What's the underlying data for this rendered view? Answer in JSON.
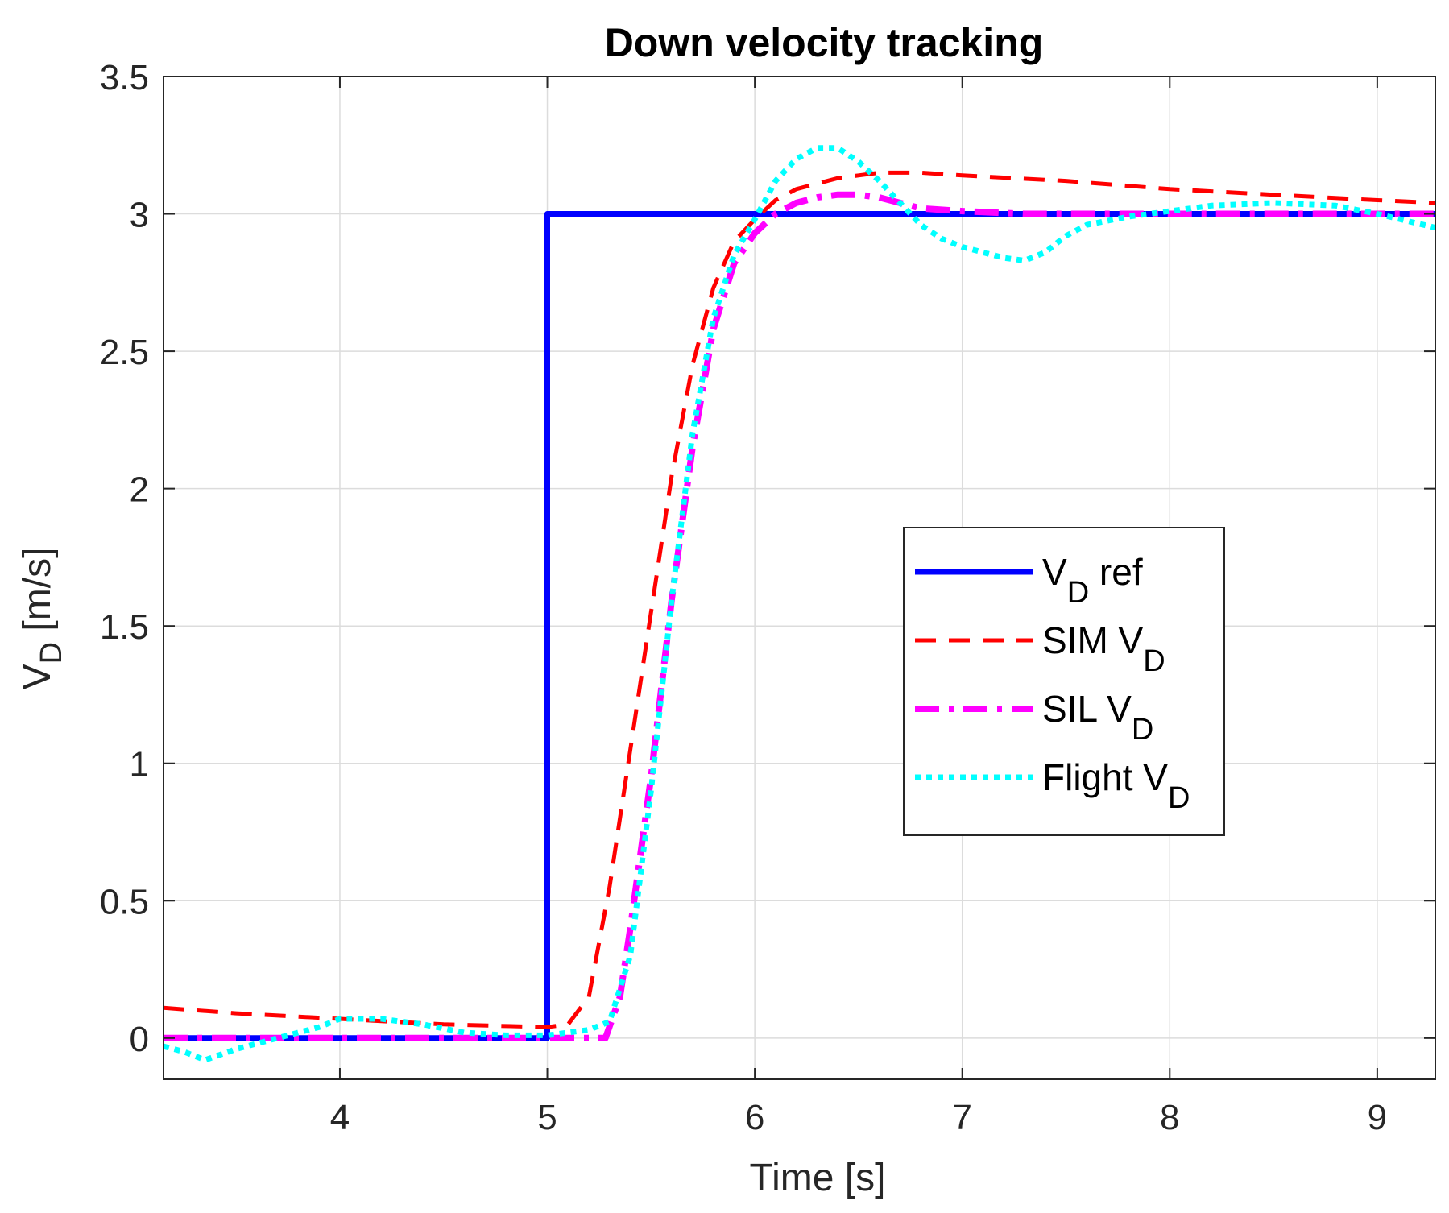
{
  "chart_data": {
    "type": "line",
    "title": "Down velocity tracking",
    "xlabel": "Time [s]",
    "ylabel": {
      "main": "V",
      "sub": "D",
      "rest": " [m/s]"
    },
    "xlim": [
      3.15,
      9.28
    ],
    "ylim": [
      -0.15,
      3.5
    ],
    "xticks": [
      4,
      5,
      6,
      7,
      8,
      9
    ],
    "xtick_labels": [
      "4",
      "5",
      "6",
      "7",
      "8",
      "9"
    ],
    "yticks": [
      0,
      0.5,
      1,
      1.5,
      2,
      2.5,
      3,
      3.5
    ],
    "ytick_labels": [
      "0",
      "0.5",
      "1",
      "1.5",
      "2",
      "2.5",
      "3",
      "3.5"
    ],
    "grid": true,
    "legend_position": "center-right",
    "series": [
      {
        "name": "V_D ref",
        "legend": {
          "pre": "V",
          "sub": "D",
          "post": " ref"
        },
        "color": "#0000ff",
        "style": "solid",
        "x": [
          3.15,
          5.0,
          5.0,
          9.28
        ],
        "y": [
          0,
          0,
          3,
          3
        ]
      },
      {
        "name": "SIM V_D",
        "legend": {
          "pre": "SIM V",
          "sub": "D",
          "post": ""
        },
        "color": "#ff0000",
        "style": "dashed",
        "x": [
          3.15,
          3.5,
          4.0,
          4.5,
          5.0,
          5.1,
          5.2,
          5.3,
          5.4,
          5.5,
          5.6,
          5.7,
          5.8,
          5.9,
          6.0,
          6.1,
          6.2,
          6.3,
          6.4,
          6.5,
          6.6,
          6.8,
          7.0,
          7.5,
          8.0,
          8.5,
          9.0,
          9.28
        ],
        "y": [
          0.11,
          0.09,
          0.07,
          0.05,
          0.04,
          0.05,
          0.15,
          0.55,
          1.05,
          1.55,
          2.05,
          2.45,
          2.73,
          2.9,
          2.98,
          3.05,
          3.09,
          3.11,
          3.13,
          3.14,
          3.15,
          3.15,
          3.14,
          3.12,
          3.09,
          3.07,
          3.05,
          3.04
        ]
      },
      {
        "name": "SIL V_D",
        "legend": {
          "pre": "SIL V",
          "sub": "D",
          "post": ""
        },
        "color": "#ff00ff",
        "style": "dashdot",
        "x": [
          3.15,
          4.0,
          5.0,
          5.28,
          5.35,
          5.4,
          5.5,
          5.6,
          5.7,
          5.8,
          5.9,
          6.0,
          6.1,
          6.2,
          6.3,
          6.4,
          6.5,
          6.6,
          6.7,
          6.8,
          7.0,
          7.3,
          7.6,
          8.0,
          8.5,
          9.0,
          9.28
        ],
        "y": [
          0,
          0,
          0,
          0.0,
          0.15,
          0.4,
          0.95,
          1.6,
          2.15,
          2.58,
          2.82,
          2.93,
          3.0,
          3.04,
          3.06,
          3.07,
          3.07,
          3.06,
          3.04,
          3.02,
          3.01,
          3.0,
          3.0,
          3.0,
          3.0,
          3.0,
          3.0
        ]
      },
      {
        "name": "Flight V_D",
        "legend": {
          "pre": "Flight V",
          "sub": "D",
          "post": ""
        },
        "color": "#00ffff",
        "style": "dotted",
        "x": [
          3.15,
          3.25,
          3.35,
          3.5,
          3.7,
          3.9,
          4.0,
          4.2,
          4.4,
          4.6,
          4.8,
          5.0,
          5.1,
          5.2,
          5.3,
          5.4,
          5.5,
          5.6,
          5.7,
          5.8,
          5.9,
          6.0,
          6.1,
          6.2,
          6.3,
          6.4,
          6.5,
          6.6,
          6.7,
          6.8,
          6.9,
          7.0,
          7.1,
          7.2,
          7.3,
          7.4,
          7.5,
          7.6,
          7.8,
          8.0,
          8.2,
          8.5,
          8.8,
          9.0,
          9.28
        ],
        "y": [
          -0.03,
          -0.05,
          -0.08,
          -0.04,
          0.0,
          0.04,
          0.07,
          0.07,
          0.05,
          0.02,
          0.01,
          0.01,
          0.02,
          0.03,
          0.06,
          0.3,
          0.9,
          1.6,
          2.2,
          2.62,
          2.85,
          2.98,
          3.12,
          3.2,
          3.24,
          3.24,
          3.19,
          3.12,
          3.04,
          2.96,
          2.91,
          2.88,
          2.86,
          2.84,
          2.83,
          2.86,
          2.92,
          2.96,
          2.99,
          3.01,
          3.03,
          3.04,
          3.03,
          3.0,
          2.95
        ]
      }
    ]
  }
}
